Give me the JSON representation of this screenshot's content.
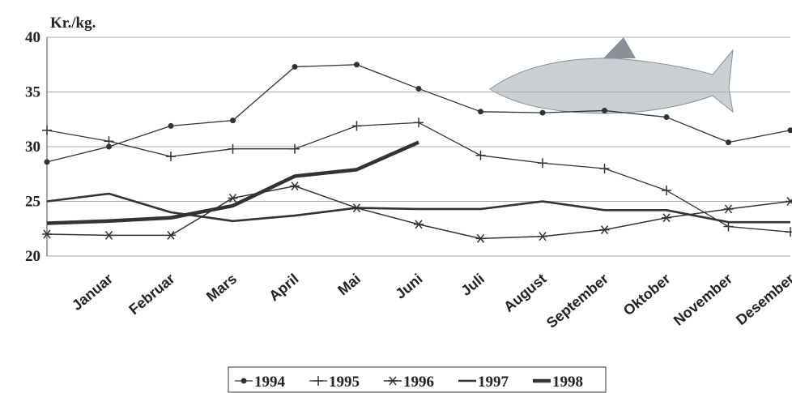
{
  "chart_data": {
    "type": "line",
    "y_label": "Kr./kg.",
    "categories": [
      null,
      "Januar",
      "Februar",
      "Mars",
      "April",
      "Mai",
      "Juni",
      "Juli",
      "August",
      "September",
      "Oktober",
      "November",
      "Desember"
    ],
    "ylim": [
      20,
      40
    ],
    "yticks": [
      20,
      25,
      30,
      35,
      40
    ],
    "grid": true,
    "series": [
      {
        "name": "1994",
        "color": "#333333",
        "marker": "dot",
        "line_width": 1.3,
        "values": [
          28.6,
          30,
          31.9,
          32.4,
          37.3,
          37.5,
          35.3,
          33.2,
          33.1,
          33.3,
          32.7,
          30.4,
          31.5
        ]
      },
      {
        "name": "1995",
        "color": "#333333",
        "marker": "plus",
        "line_width": 1.3,
        "values": [
          31.5,
          30.5,
          29.1,
          29.8,
          29.8,
          31.9,
          32.2,
          29.2,
          28.5,
          28,
          26,
          22.7,
          22.2
        ]
      },
      {
        "name": "1996",
        "color": "#333333",
        "marker": "star",
        "line_width": 1.5,
        "values": [
          22,
          21.9,
          21.9,
          25.3,
          26.4,
          24.4,
          22.9,
          21.6,
          21.8,
          22.4,
          23.5,
          24.3,
          25
        ]
      },
      {
        "name": "1997",
        "color": "#333333",
        "marker": "none",
        "line_width": 2.6,
        "values": [
          25,
          25.7,
          24,
          23.2,
          23.7,
          24.4,
          24.3,
          24.3,
          25,
          24.2,
          24.2,
          23.1,
          23.1
        ]
      },
      {
        "name": "1998",
        "color": "#333333",
        "marker": "none",
        "line_width": 4.5,
        "values": [
          23,
          23.2,
          23.5,
          24.6,
          27.3,
          27.9,
          30.4,
          null,
          null,
          null,
          null,
          null,
          null
        ]
      }
    ]
  }
}
